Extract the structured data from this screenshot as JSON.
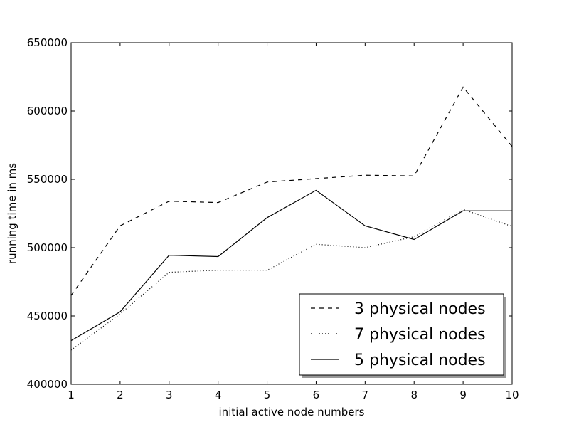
{
  "chart_data": {
    "type": "line",
    "title": "",
    "xlabel": "initial active node numbers",
    "ylabel": "running time in ms",
    "xlim": [
      1,
      10
    ],
    "ylim": [
      400000,
      650000
    ],
    "x": [
      1,
      2,
      3,
      4,
      5,
      6,
      7,
      8,
      9,
      10
    ],
    "xticks": [
      "1",
      "2",
      "3",
      "4",
      "5",
      "6",
      "7",
      "8",
      "9",
      "10"
    ],
    "yticks": [
      "400000",
      "450000",
      "500000",
      "550000",
      "600000",
      "650000"
    ],
    "grid": false,
    "legend_position": "lower-right",
    "series": [
      {
        "name": "3 physical nodes",
        "style": "dashed",
        "color": "#000000",
        "values": [
          465000,
          516000,
          534000,
          533000,
          548000,
          550500,
          553000,
          552500,
          617500,
          574000
        ]
      },
      {
        "name": "7 physical nodes",
        "style": "dotted",
        "color": "#000000",
        "values": [
          425000,
          451500,
          482000,
          483500,
          483500,
          502500,
          500000,
          508000,
          528000,
          515500
        ]
      },
      {
        "name": "5 physical nodes",
        "style": "solid",
        "color": "#000000",
        "values": [
          432000,
          453000,
          494500,
          493500,
          522000,
          542000,
          516000,
          506000,
          527000,
          527000
        ]
      }
    ]
  }
}
